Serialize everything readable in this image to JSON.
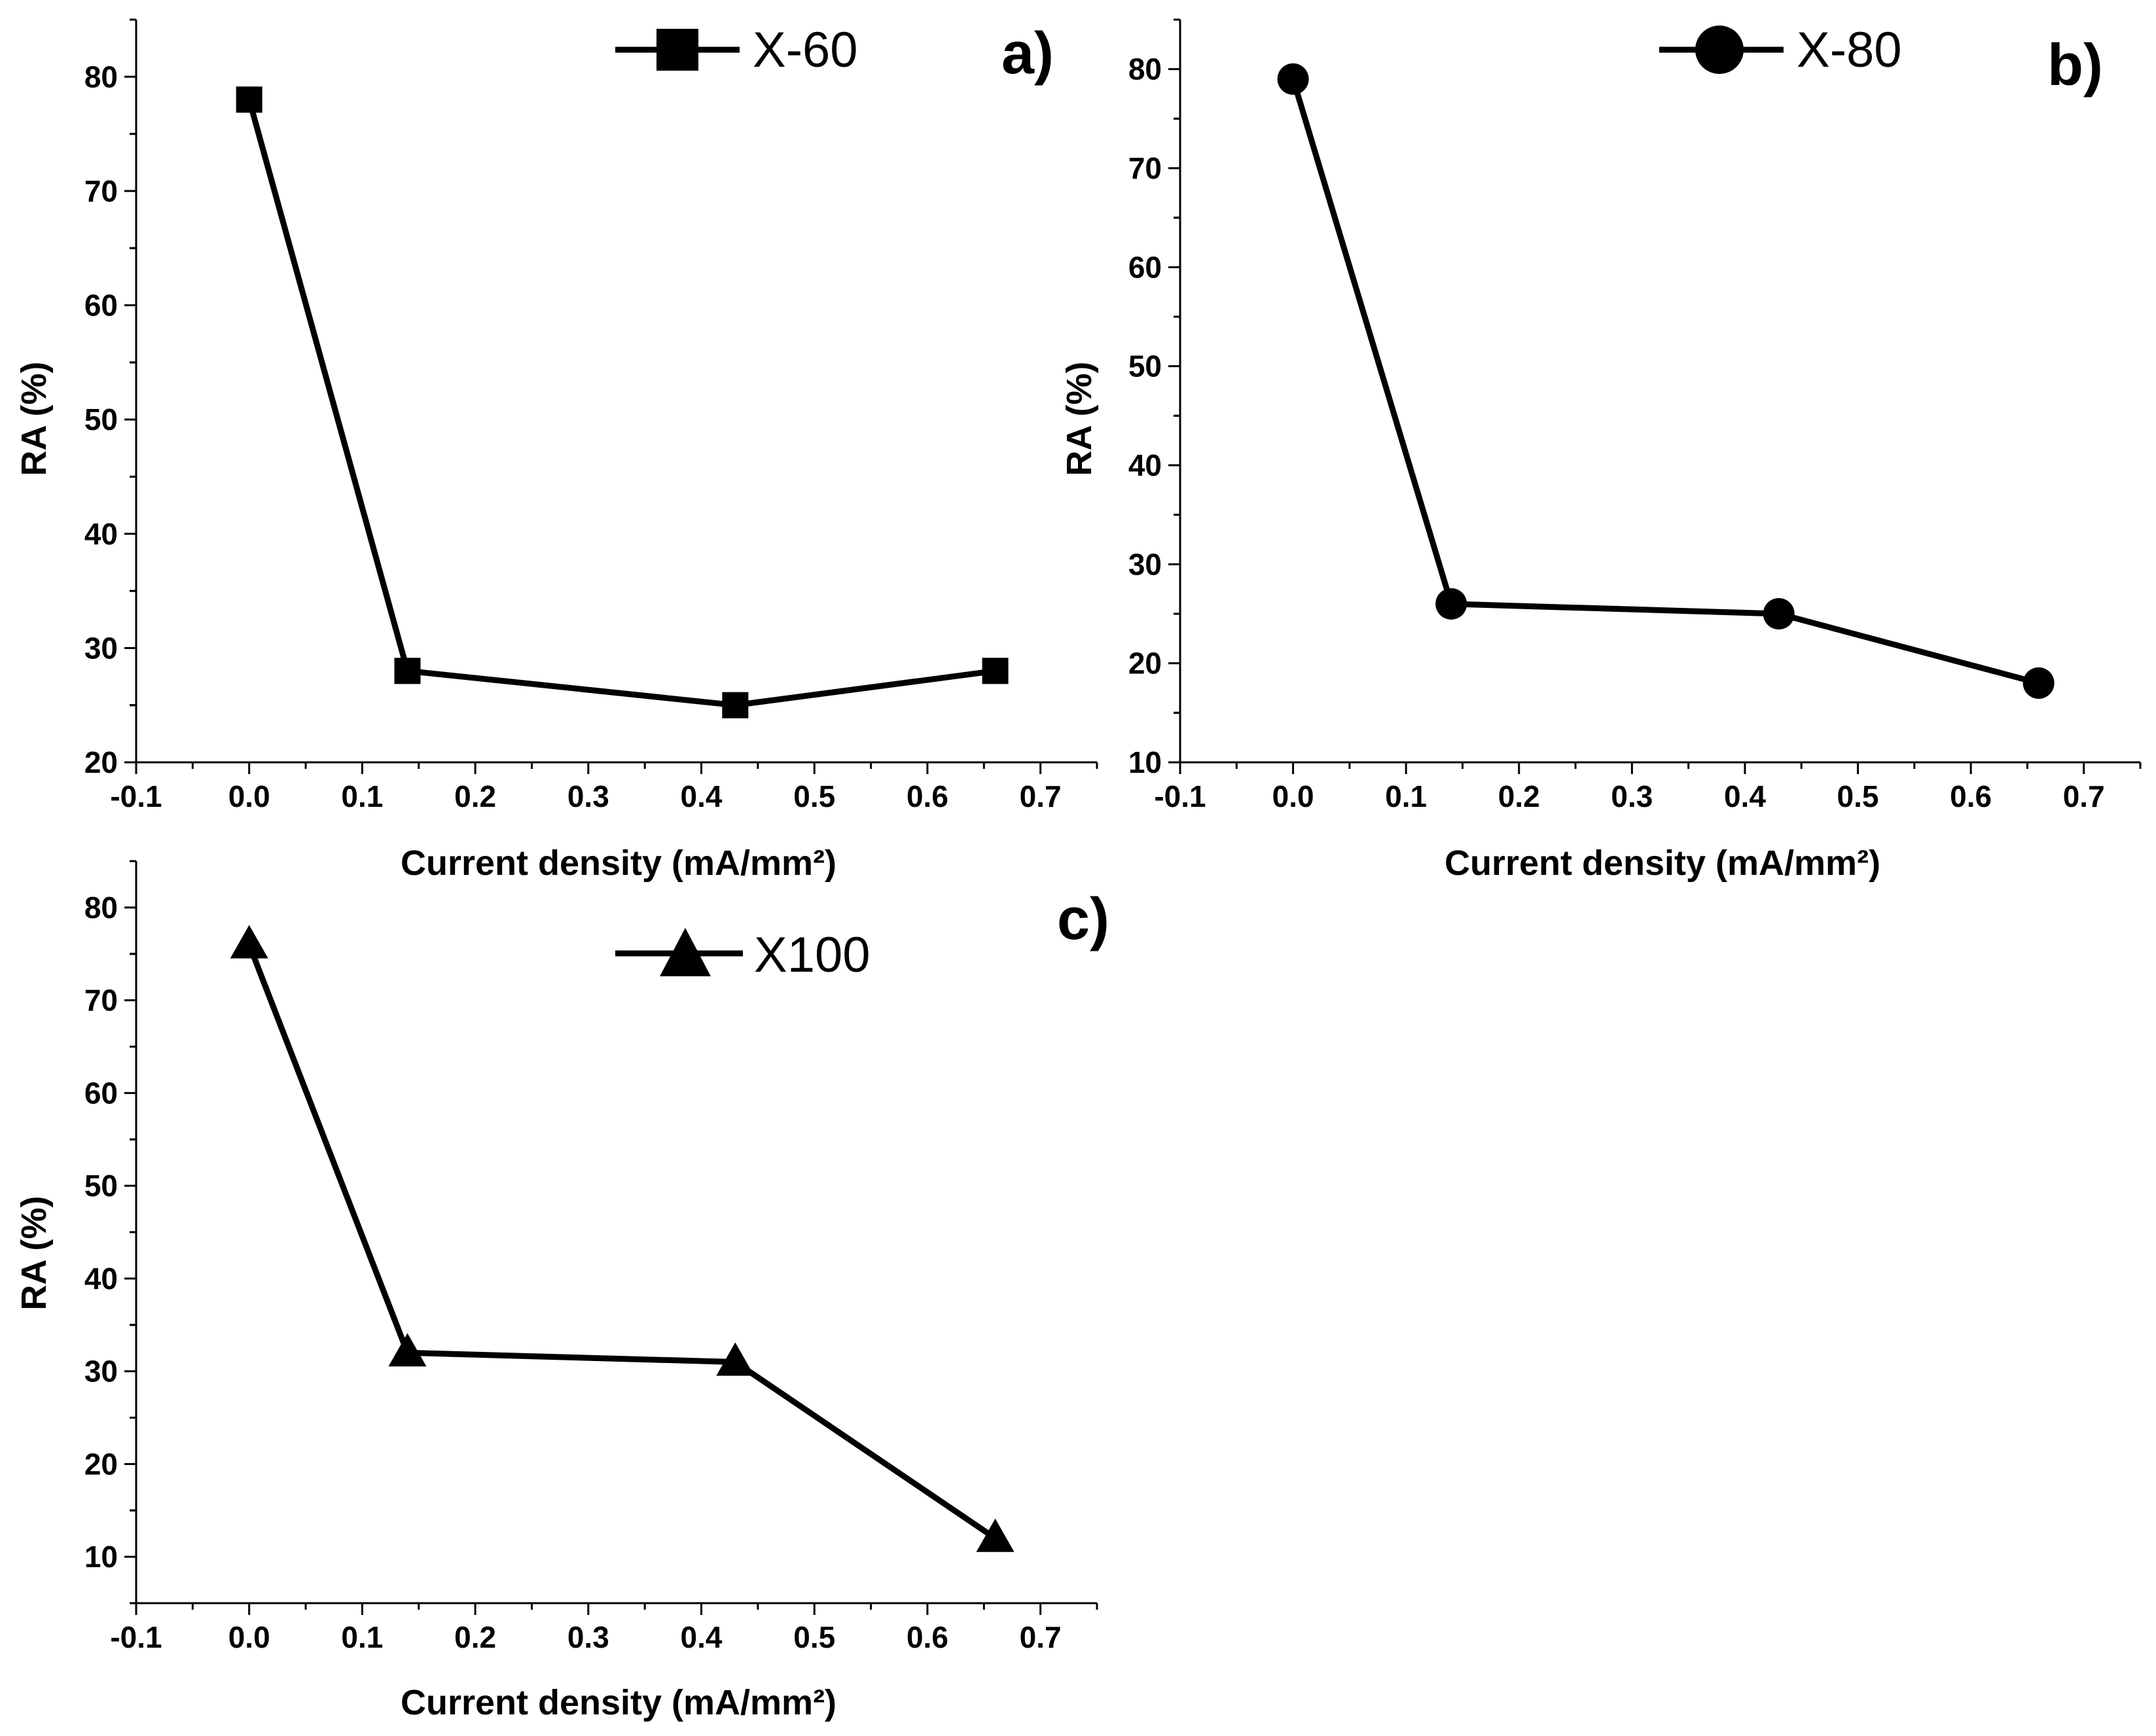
{
  "chart_data": [
    {
      "type": "line",
      "panel_label": "a)",
      "xlabel": "Current density (mA/mm²)",
      "ylabel": "RA (%)",
      "xlim": [
        -0.1,
        0.75
      ],
      "ylim": [
        20,
        85
      ],
      "xticks": [
        "-0.1",
        "0.0",
        "0.1",
        "0.2",
        "0.3",
        "0.4",
        "0.5",
        "0.6",
        "0.7"
      ],
      "yticks": [
        "20",
        "30",
        "40",
        "50",
        "60",
        "70",
        "80"
      ],
      "legend_position": "top",
      "series": [
        {
          "name": "X-60",
          "marker": "square",
          "x": [
            0.0,
            0.14,
            0.43,
            0.66
          ],
          "values": [
            78,
            28,
            25,
            28
          ]
        }
      ]
    },
    {
      "type": "line",
      "panel_label": "b)",
      "xlabel": "Current density (mA/mm²)",
      "ylabel": "RA (%)",
      "xlim": [
        -0.1,
        0.75
      ],
      "ylim": [
        10,
        85
      ],
      "xticks": [
        "-0.1",
        "0.0",
        "0.1",
        "0.2",
        "0.3",
        "0.4",
        "0.5",
        "0.6",
        "0.7"
      ],
      "yticks": [
        "10",
        "20",
        "30",
        "40",
        "50",
        "60",
        "70",
        "80"
      ],
      "legend_position": "top",
      "series": [
        {
          "name": "X-80",
          "marker": "circle",
          "x": [
            0.0,
            0.14,
            0.43,
            0.66
          ],
          "values": [
            79,
            26,
            25,
            18
          ]
        }
      ]
    },
    {
      "type": "line",
      "panel_label": "c)",
      "xlabel": "Current density (mA/mm²)",
      "ylabel": "RA (%)",
      "xlim": [
        -0.1,
        0.75
      ],
      "ylim": [
        5,
        85
      ],
      "xticks": [
        "-0.1",
        "0.0",
        "0.1",
        "0.2",
        "0.3",
        "0.4",
        "0.5",
        "0.6",
        "0.7"
      ],
      "yticks": [
        "10",
        "20",
        "30",
        "40",
        "50",
        "60",
        "70",
        "80"
      ],
      "legend_position": "top",
      "series": [
        {
          "name": "X100",
          "marker": "triangle",
          "x": [
            0.0,
            0.14,
            0.43,
            0.66
          ],
          "values": [
            76,
            32,
            31,
            12
          ]
        }
      ]
    }
  ]
}
